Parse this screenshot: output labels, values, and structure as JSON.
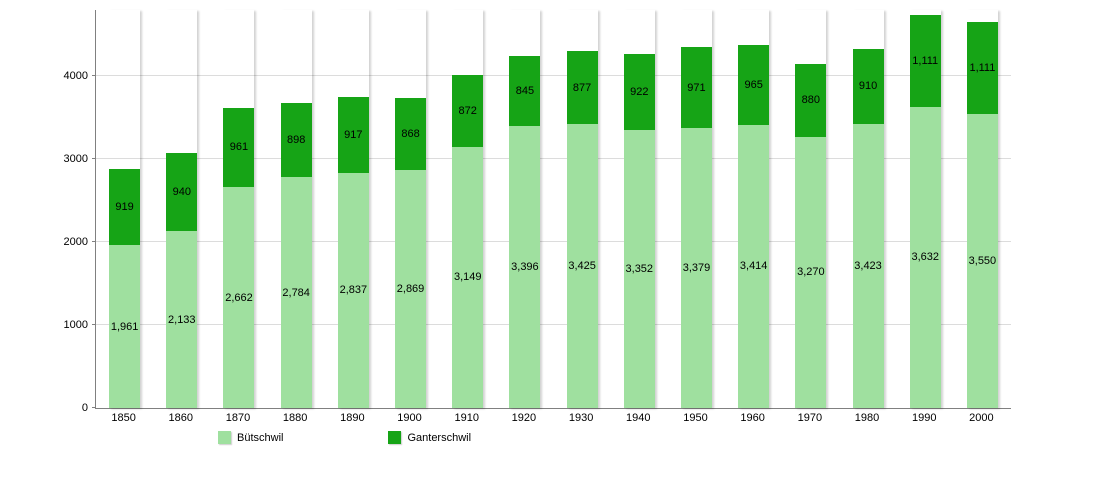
{
  "chart_data": {
    "type": "bar",
    "stacked": true,
    "title": "",
    "xlabel": "",
    "ylabel": "",
    "categories": [
      "1850",
      "1860",
      "1870",
      "1880",
      "1890",
      "1900",
      "1910",
      "1920",
      "1930",
      "1940",
      "1950",
      "1960",
      "1970",
      "1980",
      "1990",
      "2000"
    ],
    "series": [
      {
        "name": "Bütschwil",
        "color": "#9fe09f",
        "values": [
          1961,
          2133,
          2662,
          2784,
          2837,
          2869,
          3149,
          3396,
          3425,
          3352,
          3379,
          3414,
          3270,
          3423,
          3632,
          3550
        ]
      },
      {
        "name": "Ganterschwil",
        "color": "#16a416",
        "values": [
          919,
          940,
          961,
          898,
          917,
          868,
          872,
          845,
          877,
          922,
          971,
          965,
          880,
          910,
          1111,
          1111
        ]
      }
    ],
    "ylim": [
      0,
      4800
    ],
    "yticks": [
      0,
      1000,
      2000,
      3000,
      4000
    ],
    "grid": true,
    "legend_position": "bottom"
  },
  "colors": {
    "butschwil": "#9fe09f",
    "ganterschwil": "#16a416",
    "gridline": "#dcdcdc",
    "axis": "#808080"
  }
}
